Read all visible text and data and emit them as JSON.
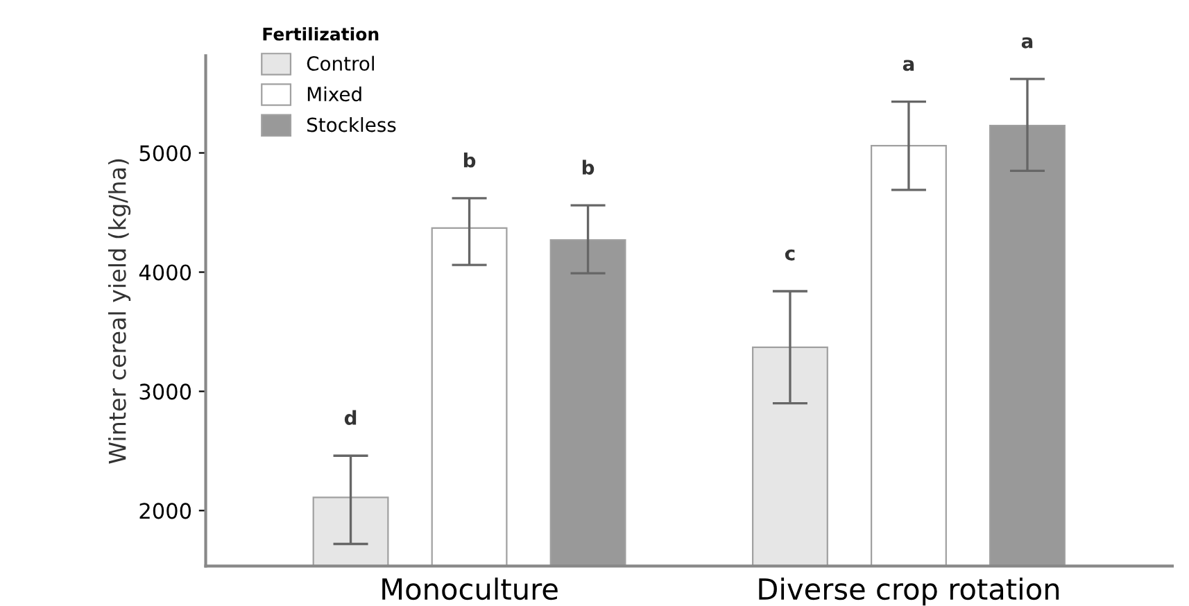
{
  "chart_data": {
    "type": "bar",
    "ylabel": "Winter cereal yield (kg/ha)",
    "legend_title": "Fertilization",
    "categories": [
      "Monoculture",
      "Diverse crop rotation"
    ],
    "series": [
      {
        "name": "Control",
        "color": "#e6e6e6",
        "values": [
          2110,
          3370
        ],
        "errors": [
          [
            1720,
            2460
          ],
          [
            2900,
            3840
          ]
        ]
      },
      {
        "name": "Mixed",
        "color": "#ffffff",
        "values": [
          4370,
          5060
        ],
        "errors": [
          [
            4060,
            4620
          ],
          [
            4690,
            5430
          ]
        ]
      },
      {
        "name": "Stockless",
        "color": "#999999",
        "values": [
          4270,
          5230
        ],
        "errors": [
          [
            3990,
            4560
          ],
          [
            4850,
            5620
          ]
        ]
      }
    ],
    "annotations": [
      "d",
      "b",
      "b",
      "c",
      "a",
      "a"
    ],
    "ylim": [
      1535,
      5815
    ],
    "yticks": [
      2000,
      3000,
      4000,
      5000
    ],
    "grid": false,
    "legend": "top left"
  }
}
